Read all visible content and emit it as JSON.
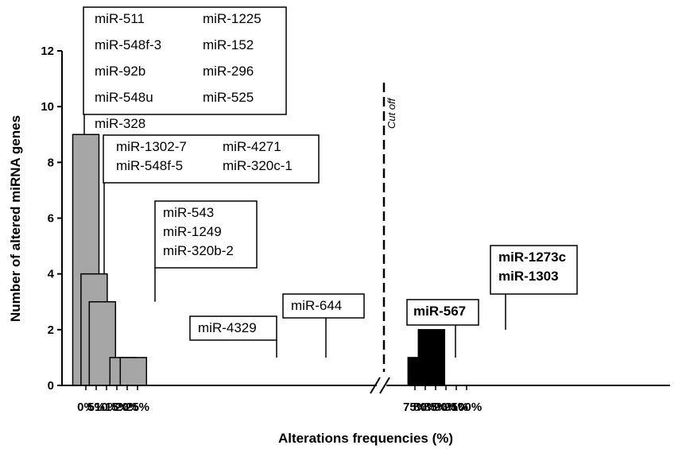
{
  "chart_data": {
    "type": "bar",
    "xlabel": "Alterations frequencies (%)",
    "ylabel": "Number of altered miRNA genes",
    "ylim": [
      0,
      12
    ],
    "yticks": [
      0,
      2,
      4,
      6,
      8,
      10,
      12
    ],
    "xticks": [
      "0%",
      "5%",
      "10%",
      "15%",
      "20%",
      "25%",
      "75%",
      "80%",
      "85%",
      "90%",
      "95%",
      "100%"
    ],
    "grid": false,
    "axis_break": "between 25% and 75%",
    "cutoff_label": "Cut off",
    "colors": {
      "below_cutoff": "#a6a6a6",
      "above_cutoff": "#000000"
    },
    "bars": [
      {
        "frequency": 0,
        "value": 9,
        "group": "below_cutoff"
      },
      {
        "frequency": 4,
        "value": 4,
        "group": "below_cutoff"
      },
      {
        "frequency": 8,
        "value": 3,
        "group": "below_cutoff"
      },
      {
        "frequency": 18,
        "value": 1,
        "group": "below_cutoff"
      },
      {
        "frequency": 23,
        "value": 1,
        "group": "below_cutoff"
      },
      {
        "frequency": 78,
        "value": 1,
        "group": "above_cutoff"
      },
      {
        "frequency": 83,
        "value": 2,
        "group": "above_cutoff"
      }
    ],
    "annotations": [
      {
        "bar": 0,
        "bold": false,
        "columns": [
          [
            "miR-511",
            "miR-548f-3",
            "miR-92b",
            "miR-548u",
            "miR-328"
          ],
          [
            "miR-1225",
            "miR-152",
            "miR-296",
            "miR-525"
          ]
        ]
      },
      {
        "bar": 1,
        "bold": false,
        "columns": [
          [
            "miR-1302-7",
            "miR-548f-5"
          ],
          [
            "miR-4271",
            "miR-320c-1"
          ]
        ]
      },
      {
        "bar": 2,
        "bold": false,
        "columns": [
          [
            "miR-543",
            "miR-1249",
            "miR-320b-2"
          ]
        ]
      },
      {
        "bar": 3,
        "bold": false,
        "columns": [
          [
            "miR-4329"
          ]
        ]
      },
      {
        "bar": 4,
        "bold": false,
        "columns": [
          [
            "miR-644"
          ]
        ]
      },
      {
        "bar": 5,
        "bold": true,
        "columns": [
          [
            "miR-567"
          ]
        ]
      },
      {
        "bar": 6,
        "bold": true,
        "columns": [
          [
            "miR-1273c",
            "miR-1303"
          ]
        ]
      }
    ]
  }
}
